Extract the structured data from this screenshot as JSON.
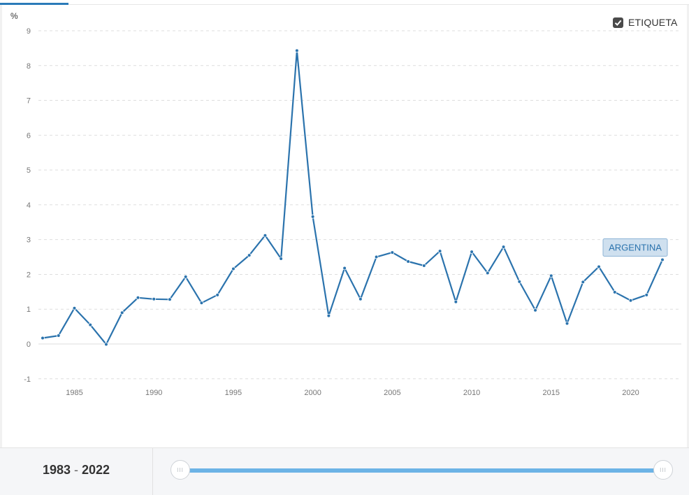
{
  "legend": {
    "checkbox_checked": true,
    "label": "ETIQUETA"
  },
  "footer": {
    "range_start": "1983",
    "range_separator": "-",
    "range_end": "2022",
    "handle_glyph": "III"
  },
  "colors": {
    "series": "#2b73ad",
    "label_bg": "#cfe0ef",
    "label_border": "#8fb5d6",
    "slider": "#6cb3e6"
  },
  "chart_data": {
    "type": "line",
    "ylabel": "%",
    "ylim": [
      -1,
      9
    ],
    "yticks": [
      -1,
      0,
      1,
      2,
      3,
      4,
      5,
      6,
      7,
      8,
      9
    ],
    "xlim": [
      1983,
      2022
    ],
    "xticks": [
      1985,
      1990,
      1995,
      2000,
      2005,
      2010,
      2015,
      2020
    ],
    "grid": true,
    "series": [
      {
        "name": "ARGENTINA",
        "x": [
          1983,
          1984,
          1985,
          1986,
          1987,
          1988,
          1989,
          1990,
          1991,
          1992,
          1993,
          1994,
          1995,
          1996,
          1997,
          1998,
          1999,
          2000,
          2001,
          2002,
          2003,
          2004,
          2005,
          2006,
          2007,
          2008,
          2009,
          2010,
          2011,
          2012,
          2013,
          2014,
          2015,
          2016,
          2017,
          2018,
          2019,
          2020,
          2021,
          2022
        ],
        "y": [
          0.17,
          0.24,
          1.03,
          0.55,
          -0.01,
          0.9,
          1.33,
          1.29,
          1.28,
          1.93,
          1.18,
          1.41,
          2.16,
          2.55,
          3.12,
          2.45,
          8.43,
          3.66,
          0.81,
          2.18,
          1.29,
          2.5,
          2.63,
          2.37,
          2.25,
          2.67,
          1.21,
          2.65,
          2.04,
          2.79,
          1.79,
          0.97,
          1.96,
          0.59,
          1.78,
          2.22,
          1.49,
          1.25,
          1.41,
          2.42
        ]
      }
    ]
  }
}
